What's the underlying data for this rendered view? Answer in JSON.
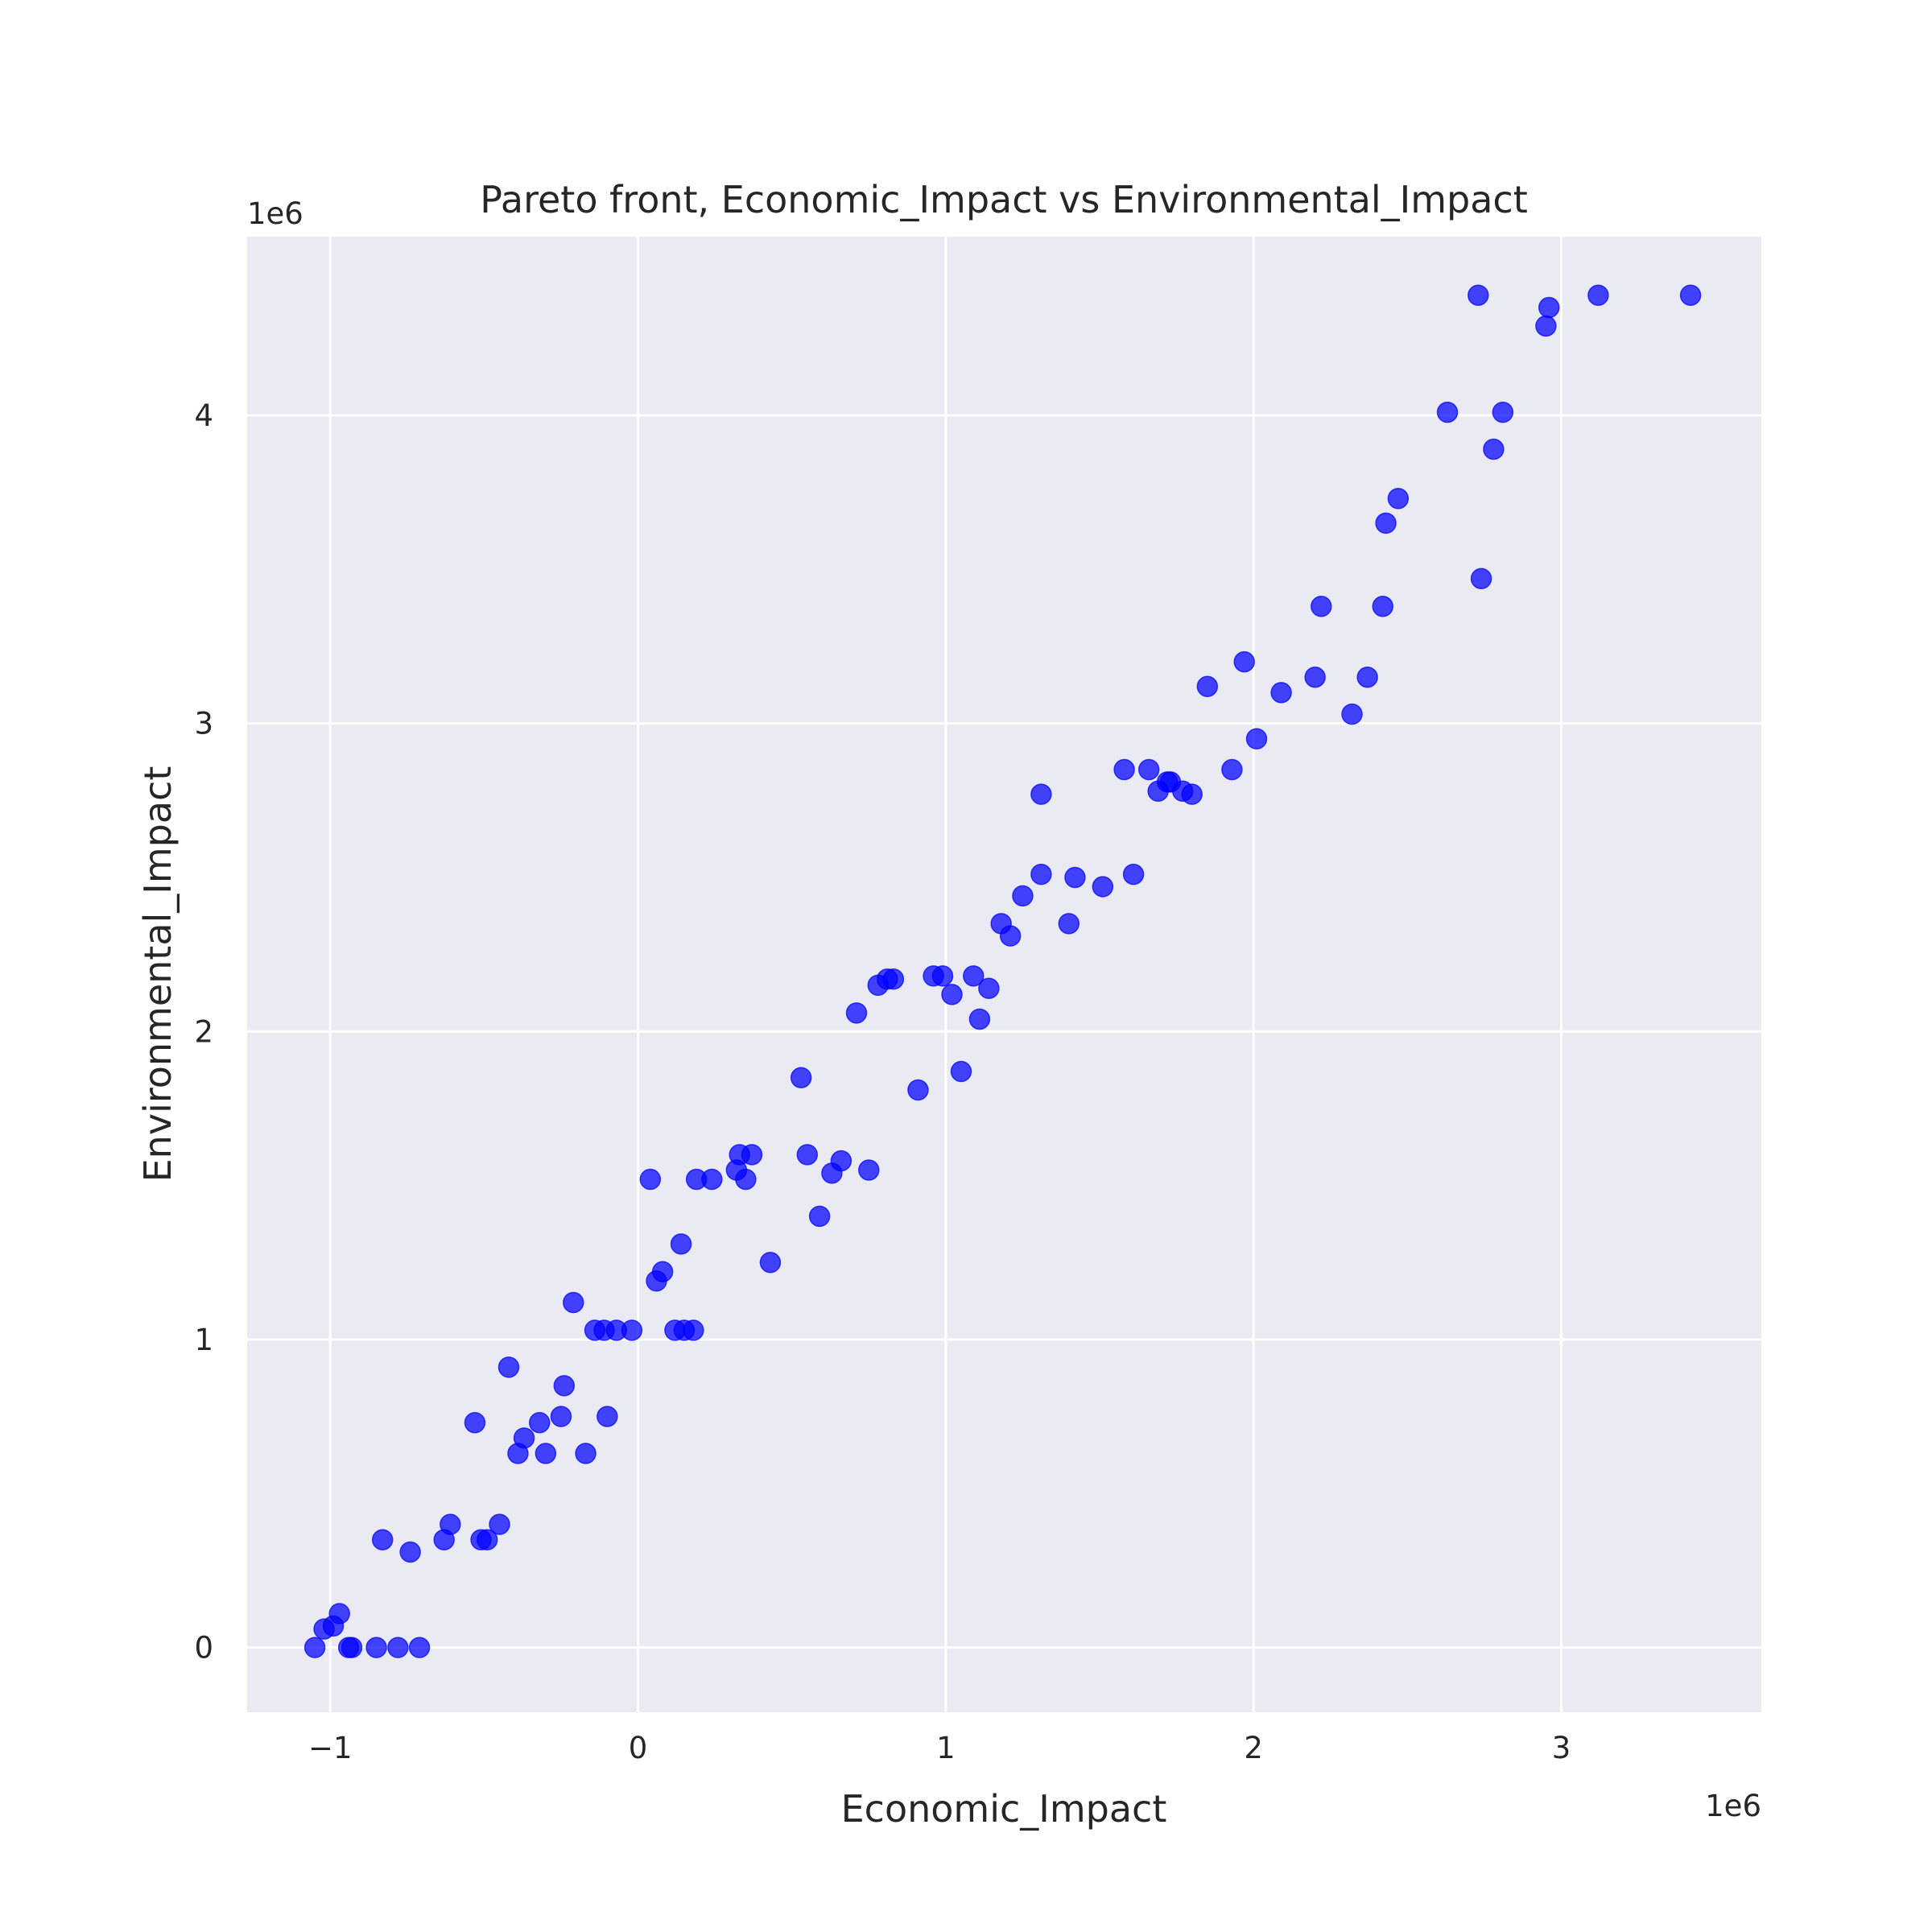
{
  "chart_data": {
    "type": "scatter",
    "title": "Pareto front, Economic_Impact vs Environmental_Impact",
    "xlabel": "Economic_Impact",
    "ylabel": "Environmental_Impact",
    "x_offset_label": "1e6",
    "y_offset_label": "1e6",
    "xlim": [
      -1.27,
      3.65
    ],
    "ylim": [
      -0.21,
      4.58
    ],
    "x_ticks": [
      -1,
      0,
      1,
      2,
      3
    ],
    "y_ticks": [
      0,
      1,
      2,
      3,
      4
    ],
    "x_tick_labels": [
      "−1",
      "0",
      "1",
      "2",
      "3"
    ],
    "y_tick_labels": [
      "0",
      "1",
      "2",
      "3",
      "4"
    ],
    "grid": true,
    "background": "#eaeaf2",
    "grid_color": "#ffffff",
    "marker_color": "#0000ff",
    "marker_alpha": 0.72,
    "series": [
      {
        "points": [
          [
            -1.05,
            0.0
          ],
          [
            -1.02,
            0.06
          ],
          [
            -0.99,
            0.07
          ],
          [
            -0.97,
            0.11
          ],
          [
            -0.94,
            0.0
          ],
          [
            -0.93,
            0.0
          ],
          [
            -0.85,
            0.0
          ],
          [
            -0.83,
            0.35
          ],
          [
            -0.78,
            0.0
          ],
          [
            -0.74,
            0.31
          ],
          [
            -0.71,
            0.0
          ],
          [
            -0.63,
            0.35
          ],
          [
            -0.61,
            0.4
          ],
          [
            -0.53,
            0.73
          ],
          [
            -0.51,
            0.35
          ],
          [
            -0.49,
            0.35
          ],
          [
            -0.45,
            0.4
          ],
          [
            -0.42,
            0.91
          ],
          [
            -0.39,
            0.63
          ],
          [
            -0.37,
            0.68
          ],
          [
            -0.32,
            0.73
          ],
          [
            -0.3,
            0.63
          ],
          [
            -0.25,
            0.75
          ],
          [
            -0.24,
            0.85
          ],
          [
            -0.21,
            1.12
          ],
          [
            -0.17,
            0.63
          ],
          [
            -0.14,
            1.03
          ],
          [
            -0.11,
            1.03
          ],
          [
            -0.1,
            0.75
          ],
          [
            -0.07,
            1.03
          ],
          [
            -0.02,
            1.03
          ],
          [
            0.04,
            1.52
          ],
          [
            0.06,
            1.19
          ],
          [
            0.08,
            1.22
          ],
          [
            0.12,
            1.03
          ],
          [
            0.14,
            1.31
          ],
          [
            0.15,
            1.03
          ],
          [
            0.18,
            1.03
          ],
          [
            0.19,
            1.52
          ],
          [
            0.24,
            1.52
          ],
          [
            0.32,
            1.55
          ],
          [
            0.33,
            1.6
          ],
          [
            0.35,
            1.52
          ],
          [
            0.37,
            1.6
          ],
          [
            0.43,
            1.25
          ],
          [
            0.53,
            1.85
          ],
          [
            0.55,
            1.6
          ],
          [
            0.59,
            1.4
          ],
          [
            0.63,
            1.54
          ],
          [
            0.66,
            1.58
          ],
          [
            0.71,
            2.06
          ],
          [
            0.75,
            1.55
          ],
          [
            0.78,
            2.15
          ],
          [
            0.81,
            2.17
          ],
          [
            0.83,
            2.17
          ],
          [
            0.91,
            1.81
          ],
          [
            0.96,
            2.18
          ],
          [
            0.99,
            2.18
          ],
          [
            1.02,
            2.12
          ],
          [
            1.05,
            1.87
          ],
          [
            1.09,
            2.18
          ],
          [
            1.11,
            2.04
          ],
          [
            1.14,
            2.14
          ],
          [
            1.18,
            2.35
          ],
          [
            1.21,
            2.31
          ],
          [
            1.25,
            2.44
          ],
          [
            1.31,
            2.51
          ],
          [
            1.31,
            2.77
          ],
          [
            1.4,
            2.35
          ],
          [
            1.42,
            2.5
          ],
          [
            1.51,
            2.47
          ],
          [
            1.58,
            2.85
          ],
          [
            1.61,
            2.51
          ],
          [
            1.66,
            2.85
          ],
          [
            1.69,
            2.78
          ],
          [
            1.72,
            2.81
          ],
          [
            1.73,
            2.81
          ],
          [
            1.77,
            2.78
          ],
          [
            1.8,
            2.77
          ],
          [
            1.85,
            3.12
          ],
          [
            1.93,
            2.85
          ],
          [
            1.97,
            3.2
          ],
          [
            2.01,
            2.95
          ],
          [
            2.09,
            3.1
          ],
          [
            2.2,
            3.15
          ],
          [
            2.22,
            3.38
          ],
          [
            2.32,
            3.03
          ],
          [
            2.37,
            3.15
          ],
          [
            2.42,
            3.38
          ],
          [
            2.43,
            3.65
          ],
          [
            2.47,
            3.73
          ],
          [
            2.63,
            4.01
          ],
          [
            2.73,
            4.39
          ],
          [
            2.74,
            3.47
          ],
          [
            2.78,
            3.89
          ],
          [
            2.81,
            4.01
          ],
          [
            2.95,
            4.29
          ],
          [
            2.96,
            4.35
          ],
          [
            3.12,
            4.39
          ],
          [
            3.42,
            4.39
          ]
        ]
      }
    ]
  }
}
